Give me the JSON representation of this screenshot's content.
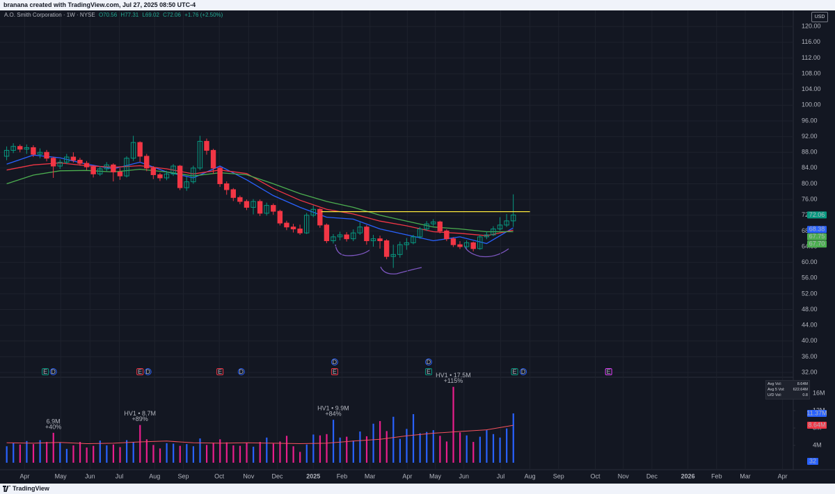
{
  "header": {
    "credit": "branana created with TradingView.com, Jul 27, 2025 08:50 UTC-4"
  },
  "chart_data": {
    "type": "candlestick",
    "title": "A.O. Smith Corporation · 1W · NYSE",
    "legend_values": [
      "O70.56",
      "H77.31",
      "L69.02",
      "C72.06",
      "+1.76 (+2.50%)"
    ],
    "currency": "USD",
    "x": [
      0,
      1,
      2,
      3,
      4,
      5,
      6,
      7,
      8,
      9,
      10,
      11,
      12,
      13,
      14,
      15,
      16,
      17,
      18,
      19,
      20,
      21,
      22,
      23,
      24,
      25,
      26,
      27,
      28,
      29,
      30,
      31,
      32,
      33,
      34,
      35,
      36,
      37,
      38,
      39,
      40,
      41,
      42,
      43,
      44,
      45,
      46,
      47,
      48,
      49,
      50,
      51,
      52,
      53,
      54,
      55,
      56,
      57,
      58,
      59,
      60,
      61,
      62,
      63,
      64,
      65,
      66,
      67,
      68,
      69,
      70,
      71,
      72,
      73,
      74,
      75,
      76
    ],
    "open": [
      87,
      88.5,
      89.5,
      88.8,
      89.2,
      87.5,
      88,
      86.5,
      84.5,
      85.5,
      86.8,
      86,
      85.2,
      84.3,
      82.5,
      83.8,
      84.8,
      83,
      82,
      86.5,
      90.5,
      87,
      84,
      82.3,
      81.5,
      82.5,
      84.5,
      79,
      80.5,
      84,
      90.8,
      88.5,
      84,
      80,
      78.5,
      76.5,
      75.5,
      74,
      75.5,
      72.5,
      74.5,
      73,
      70,
      69,
      68.5,
      67.5,
      72,
      73.5,
      69.5,
      65.5,
      66.5,
      67,
      66,
      67.5,
      69,
      65.5,
      66,
      65.5,
      61.5,
      62,
      64.5,
      65,
      66.5,
      68.5,
      69.8,
      70.3,
      68,
      66,
      64.5,
      64,
      65,
      63.5,
      66.5,
      67,
      68.5,
      69.5,
      70.56
    ],
    "high": [
      89.5,
      90.3,
      90,
      90,
      89.8,
      89,
      88.6,
      86.9,
      86.2,
      87.6,
      88,
      86.6,
      85.8,
      84.7,
      84.5,
      85.5,
      85.2,
      84,
      87,
      92.2,
      90.8,
      87.6,
      84.5,
      82.8,
      83.3,
      85,
      84.8,
      81.8,
      84.6,
      92.2,
      91.5,
      88.9,
      84.4,
      80.6,
      78.9,
      77,
      76,
      76.1,
      76,
      75.2,
      75,
      73.4,
      70.6,
      69.8,
      69.6,
      72.6,
      74.5,
      73.8,
      69.9,
      67.2,
      67.8,
      67.7,
      68.4,
      70.2,
      69.5,
      67,
      66.8,
      65.9,
      64.5,
      65.3,
      66.2,
      67,
      69,
      70.5,
      71,
      70.6,
      68.4,
      66.4,
      65.4,
      65.6,
      65.3,
      67,
      67.8,
      69.2,
      71.5,
      72.3,
      77.31
    ],
    "low": [
      86,
      87.8,
      88,
      87.6,
      86.8,
      86.5,
      85.7,
      81.5,
      83.8,
      85,
      85.4,
      84.6,
      83.5,
      81.6,
      82,
      83.2,
      80.6,
      81,
      81.6,
      85.8,
      85.5,
      83.2,
      81.2,
      80.7,
      80.9,
      82,
      78.4,
      78.2,
      80,
      83.5,
      87.4,
      82.5,
      79.2,
      77.2,
      75.6,
      74.8,
      73.3,
      72.2,
      71.8,
      71.9,
      72.1,
      69.4,
      68.2,
      67.6,
      67,
      67.2,
      71.5,
      68.8,
      64.9,
      64.8,
      65.6,
      65.3,
      65.4,
      67,
      64.5,
      64,
      63.5,
      60.8,
      58.6,
      61.2,
      63.2,
      64.6,
      66,
      68,
      69.2,
      67.4,
      65.4,
      63.9,
      63.4,
      63.5,
      62.8,
      63.2,
      65.9,
      66.7,
      68.1,
      69,
      69.02
    ],
    "close": [
      88.5,
      89.5,
      88.8,
      89.2,
      87.5,
      88,
      86.5,
      84.5,
      85.5,
      86.8,
      86,
      85.2,
      84.3,
      82.5,
      83.8,
      84.8,
      83,
      82,
      86.5,
      90.5,
      87,
      84,
      82.3,
      81.5,
      82.5,
      84.5,
      79,
      80.5,
      84,
      90.8,
      88.5,
      84,
      80,
      78.5,
      76.5,
      75.5,
      74,
      75.5,
      72.5,
      74.5,
      73,
      70,
      69,
      68.5,
      67.5,
      72,
      73.5,
      69.5,
      65.5,
      66.5,
      67,
      66,
      67.5,
      69,
      65.5,
      66,
      65.5,
      61.5,
      62,
      64.5,
      65,
      66.5,
      68.5,
      69.8,
      70.3,
      68,
      66,
      64.5,
      64,
      65,
      63.5,
      66.5,
      67,
      68.5,
      69.5,
      70.56,
      72.06
    ],
    "colors": {
      "up": "#089981",
      "down": "#f23645"
    },
    "xlim": [
      -1,
      118
    ],
    "xticks": [
      {
        "value": 2.7,
        "label": "Apr"
      },
      {
        "value": 8.1,
        "label": "May"
      },
      {
        "value": 12.5,
        "label": "Jun"
      },
      {
        "value": 16.9,
        "label": "Jul"
      },
      {
        "value": 22.2,
        "label": "Aug"
      },
      {
        "value": 26.5,
        "label": "Sep"
      },
      {
        "value": 31.9,
        "label": "Oct"
      },
      {
        "value": 36.3,
        "label": "Nov"
      },
      {
        "value": 40.6,
        "label": "Dec"
      },
      {
        "value": 46,
        "label": "2025"
      },
      {
        "value": 50.3,
        "label": "Feb"
      },
      {
        "value": 54.5,
        "label": "Mar"
      },
      {
        "value": 60.1,
        "label": "Apr"
      },
      {
        "value": 64.3,
        "label": "May"
      },
      {
        "value": 68.6,
        "label": "Jun"
      },
      {
        "value": 74.1,
        "label": "Jul"
      },
      {
        "value": 78.5,
        "label": "Aug"
      },
      {
        "value": 82.8,
        "label": "Sep"
      },
      {
        "value": 88.3,
        "label": "Oct"
      },
      {
        "value": 92.5,
        "label": "Nov"
      },
      {
        "value": 96.8,
        "label": "Dec"
      },
      {
        "value": 102.2,
        "label": "2026"
      },
      {
        "value": 106.5,
        "label": "Feb"
      },
      {
        "value": 110.8,
        "label": "Mar"
      },
      {
        "value": 116.4,
        "label": "Apr"
      }
    ],
    "ylim": [
      31.3,
      124.1
    ],
    "yticks": [
      {
        "value": 32,
        "label": "32.00"
      },
      {
        "value": 36,
        "label": "36.00"
      },
      {
        "value": 40,
        "label": "40.00"
      },
      {
        "value": 44,
        "label": "44.00"
      },
      {
        "value": 48,
        "label": "48.00"
      },
      {
        "value": 52,
        "label": "52.00"
      },
      {
        "value": 56,
        "label": "56.00"
      },
      {
        "value": 60,
        "label": "60.00"
      },
      {
        "value": 64,
        "label": "64.00"
      },
      {
        "value": 68,
        "label": "68.00"
      },
      {
        "value": 72,
        "label": "72.00"
      },
      {
        "value": 76,
        "label": "76.00"
      },
      {
        "value": 80,
        "label": "80.00"
      },
      {
        "value": 84,
        "label": "84.00"
      },
      {
        "value": 88,
        "label": "88.00"
      },
      {
        "value": 92,
        "label": "92.00"
      },
      {
        "value": 96,
        "label": "96.00"
      },
      {
        "value": 100,
        "label": "100.00"
      },
      {
        "value": 104,
        "label": "104.00"
      },
      {
        "value": 108,
        "label": "108.00"
      },
      {
        "value": 112,
        "label": "112.00"
      },
      {
        "value": 116,
        "label": "116.00"
      },
      {
        "value": 120,
        "label": "120.00"
      }
    ],
    "grid": true,
    "moving_averages": [
      {
        "color": "#2962ff",
        "x": [
          0,
          4,
          8,
          12,
          16,
          20,
          24,
          28,
          32,
          36,
          40,
          44,
          48,
          52,
          56,
          60,
          64,
          68,
          72,
          76
        ],
        "values": [
          85,
          87.3,
          86.6,
          85,
          83.8,
          85.5,
          83,
          81.5,
          84.5,
          81,
          77,
          74,
          71.5,
          71,
          68.5,
          67,
          65.5,
          66.5,
          64.8,
          68.8
        ]
      },
      {
        "color": "#f23645",
        "x": [
          0,
          4,
          8,
          12,
          16,
          20,
          24,
          28,
          32,
          36,
          40,
          44,
          48,
          52,
          56,
          60,
          64,
          68,
          72,
          76
        ],
        "values": [
          83.5,
          84.8,
          85.3,
          84.6,
          84.2,
          84.6,
          83.8,
          82.5,
          83.5,
          82.6,
          78.8,
          75.8,
          73.5,
          72.3,
          70.5,
          69.3,
          67.8,
          67.4,
          66.8,
          68.2
        ]
      },
      {
        "color": "#4caf50",
        "x": [
          0,
          4,
          8,
          12,
          16,
          20,
          24,
          28,
          32,
          36,
          40,
          44,
          48,
          52,
          56,
          60,
          64,
          68,
          72,
          76
        ],
        "values": [
          80,
          82.2,
          83.3,
          83.4,
          83,
          83.7,
          83,
          82,
          82.8,
          82.3,
          80,
          77.5,
          75.5,
          74,
          72,
          70.5,
          69,
          68.5,
          67.8,
          67.8
        ]
      }
    ],
    "resistance": {
      "value": 72.9,
      "x": [
        47.2,
        78.5
      ],
      "color": "#ffeb3b"
    },
    "price_badges": [
      {
        "value": 72.06,
        "label": "72.06",
        "color": "#089981"
      },
      {
        "value": 68.38,
        "label": "68.38",
        "color": "#2962ff"
      },
      {
        "value": 67.75,
        "label": "67.75",
        "color": "#4caf50"
      },
      {
        "value": 67.7,
        "label": "67.70",
        "color": "#4caf50"
      }
    ],
    "events": [
      {
        "x": 5.8,
        "label": "E",
        "color": "#089981"
      },
      {
        "x": 7,
        "label": "D",
        "color": "#2962ff"
      },
      {
        "x": 20,
        "label": "E",
        "color": "#f23645"
      },
      {
        "x": 21.2,
        "label": "D",
        "color": "#2962ff"
      },
      {
        "x": 32,
        "label": "E",
        "color": "#f23645"
      },
      {
        "x": 35.2,
        "label": "D",
        "color": "#2962ff"
      },
      {
        "x": 49.2,
        "label": "E",
        "color": "#f23645"
      },
      {
        "x": 49.2,
        "label": "D",
        "color": "#2962ff"
      },
      {
        "x": 63.3,
        "label": "E",
        "color": "#089981"
      },
      {
        "x": 63.3,
        "label": "D",
        "color": "#2962ff"
      },
      {
        "x": 76.2,
        "label": "E",
        "color": "#089981"
      },
      {
        "x": 77.5,
        "label": "D",
        "color": "#2962ff"
      },
      {
        "x": 90.3,
        "label": "E",
        "color": "#e040fb"
      }
    ],
    "volume": {
      "values": [
        3.8,
        4.5,
        4.2,
        5.0,
        4.3,
        5.2,
        4.8,
        6.9,
        4.6,
        3.2,
        4.0,
        4.8,
        3.5,
        3.9,
        5.1,
        4.0,
        4.2,
        3.6,
        5.2,
        4.8,
        8.7,
        5.4,
        4.1,
        3.3,
        4.5,
        4.4,
        3.9,
        4.3,
        3.8,
        5.6,
        4.1,
        4.6,
        5.4,
        4.7,
        4.0,
        3.9,
        4.6,
        3.7,
        4.8,
        5.8,
        4.4,
        4.9,
        6.2,
        3.8,
        2.5,
        4.2,
        6.5,
        6.3,
        6.6,
        9.9,
        5.8,
        6.0,
        5.1,
        7.2,
        6.1,
        9.0,
        9.6,
        7.3,
        10.6,
        5.5,
        7.8,
        11.2,
        6.8,
        7.1,
        7.5,
        6.2,
        4.9,
        17.5,
        7.0,
        6.3,
        4.8,
        6.0,
        7.5,
        6.6,
        5.8,
        7.9,
        11.37
      ],
      "up_color": "#2962ff",
      "down_color": "#e91e8c",
      "ylim": [
        0,
        18.9
      ],
      "yticks": [
        {
          "value": 4,
          "label": "4M"
        },
        {
          "value": 8,
          "label": "8M"
        },
        {
          "value": 12,
          "label": "12M"
        },
        {
          "value": 16,
          "label": "16M"
        }
      ],
      "ma": {
        "color": "#f7525f",
        "x": [
          0,
          4,
          8,
          12,
          16,
          20,
          24,
          28,
          32,
          36,
          40,
          44,
          48,
          52,
          56,
          60,
          64,
          68,
          72,
          76
        ],
        "values": [
          4.6,
          4.5,
          4.7,
          4.4,
          4.5,
          4.8,
          5.0,
          4.6,
          4.5,
          4.6,
          4.5,
          4.4,
          4.5,
          5.0,
          5.4,
          6.2,
          6.8,
          7.2,
          7.6,
          8.64
        ]
      },
      "annotations": [
        {
          "x": 7,
          "label": "6.9M",
          "change": "+40%"
        },
        {
          "x": 20,
          "label": "HV1 • 8.7M",
          "change": "+89%"
        },
        {
          "x": 49,
          "label": "HV1 • 9.9M",
          "change": "+84%"
        },
        {
          "x": 67,
          "label": "HV1 • 17.5M",
          "change": "+115%"
        }
      ],
      "badges": [
        {
          "value": 11.37,
          "label": "11.37M",
          "color": "#2962ff"
        },
        {
          "value": 8.64,
          "label": "8.64M",
          "color": "#f23645"
        }
      ],
      "indicator_badge": "32",
      "stats": [
        {
          "label": "Avg Vol:",
          "value": "8.64M"
        },
        {
          "label": "Avg 5 Vol:",
          "value": "622.64M"
        },
        {
          "label": "U/D Vol:",
          "value": "0.8"
        }
      ]
    }
  },
  "footer": {
    "brand": "TradingView"
  }
}
